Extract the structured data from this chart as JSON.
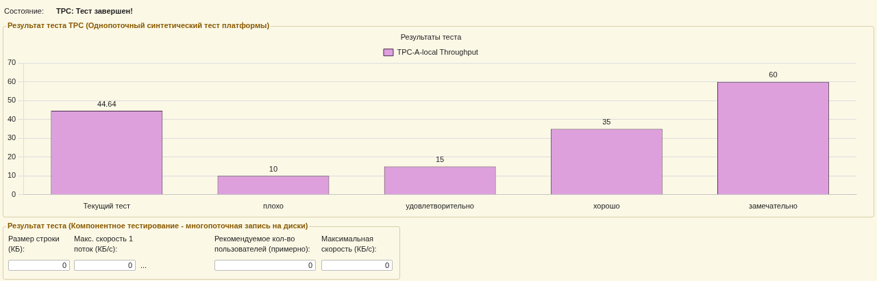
{
  "chart_data": {
    "type": "bar",
    "title": "Результаты теста",
    "categories": [
      "Текущий тест",
      "плохо",
      "удовлетворительно",
      "хорошо",
      "замечательно"
    ],
    "series": [
      {
        "name": "TPC-A-local Throughput",
        "color": "#dda0dd",
        "values": [
          44.64,
          10,
          15,
          35,
          60
        ]
      }
    ],
    "ylim": [
      0,
      70
    ],
    "yticks": [
      0,
      10,
      20,
      30,
      40,
      50,
      60,
      70
    ],
    "grid": "y",
    "legend": "top",
    "data_labels": true,
    "annotations": [
      "Состояние:",
      "TPC: Тест завершен!",
      "Результат теста TPC (Однопоточный синтетический тест платформы)",
      "Результат теста (Компонентное тестирование - многопоточная запись на диски)",
      "Размер строки (КБ):",
      "Макс. скорость 1 поток (КБ/с):",
      "Рекомендуемое кол-во пользователей (примерно):",
      "Максимальная скорость (КБ/с):",
      "0",
      "0",
      "0",
      "0",
      "..."
    ]
  }
}
